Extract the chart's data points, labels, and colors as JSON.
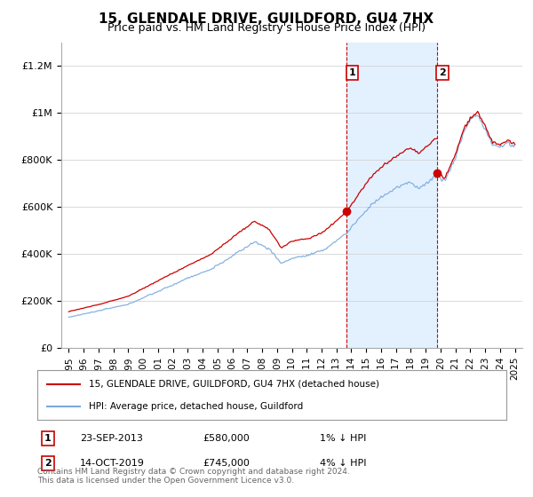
{
  "title": "15, GLENDALE DRIVE, GUILDFORD, GU4 7HX",
  "subtitle": "Price paid vs. HM Land Registry's House Price Index (HPI)",
  "ylim": [
    0,
    1300000
  ],
  "yticks": [
    0,
    200000,
    400000,
    600000,
    800000,
    1000000,
    1200000
  ],
  "ytick_labels": [
    "£0",
    "£200K",
    "£400K",
    "£600K",
    "£800K",
    "£1M",
    "£1.2M"
  ],
  "x_start_year": 1995,
  "x_end_year": 2025,
  "hpi_color": "#7aaadd",
  "price_color": "#cc0000",
  "purchase1_date": "23-SEP-2013",
  "purchase1_price": 580000,
  "purchase1_label": "1",
  "purchase1_pct": "1%",
  "purchase2_date": "14-OCT-2019",
  "purchase2_price": 745000,
  "purchase2_label": "2",
  "purchase2_pct": "4%",
  "shaded_color": "#ddeeff",
  "vline_color": "#cc0000",
  "legend_house": "15, GLENDALE DRIVE, GUILDFORD, GU4 7HX (detached house)",
  "legend_hpi": "HPI: Average price, detached house, Guildford",
  "footer": "Contains HM Land Registry data © Crown copyright and database right 2024.\nThis data is licensed under the Open Government Licence v3.0.",
  "title_fontsize": 11,
  "subtitle_fontsize": 9
}
